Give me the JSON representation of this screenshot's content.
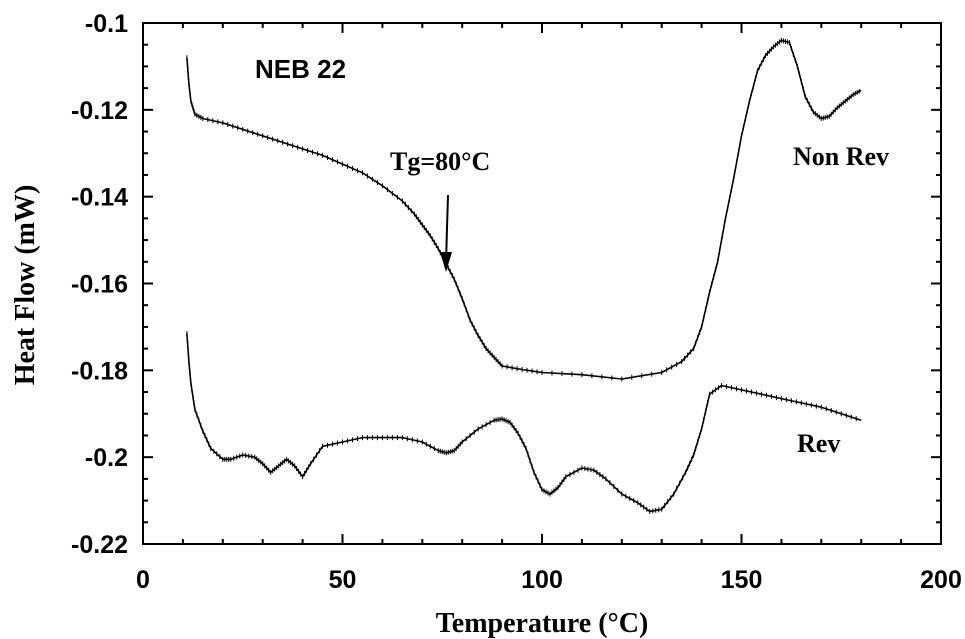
{
  "chart_data": {
    "type": "line",
    "title": "",
    "sample_label": "NEB 22",
    "xlabel": "Temperature (°C)",
    "ylabel": "Heat Flow (mW)",
    "xlim": [
      0,
      200
    ],
    "ylim": [
      -0.22,
      -0.1
    ],
    "grid": false,
    "x_ticks": [
      0,
      50,
      100,
      150,
      200
    ],
    "x_tick_labels": [
      "0",
      "50",
      "100",
      "150",
      "200"
    ],
    "y_ticks": [
      -0.1,
      -0.12,
      -0.14,
      -0.16,
      -0.18,
      -0.2,
      -0.22
    ],
    "y_tick_labels": [
      "-0.1",
      "-0.12",
      "-0.14",
      "-0.16",
      "-0.18",
      "-0.2",
      "-0.22"
    ],
    "annotations": [
      {
        "text": "Tg=80°C",
        "x": 78,
        "y": -0.163
      }
    ],
    "series": [
      {
        "name": "Non Rev",
        "x": [
          11,
          11.5,
          12,
          13,
          15,
          20,
          25,
          30,
          35,
          40,
          45,
          50,
          55,
          60,
          65,
          68,
          70,
          72,
          74,
          76,
          78,
          80,
          82,
          84,
          86,
          88,
          90,
          95,
          100,
          110,
          120,
          130,
          135,
          138,
          140,
          142,
          144,
          146,
          148,
          150,
          152,
          154,
          156,
          158,
          160,
          162,
          164,
          166,
          168,
          170,
          172,
          174,
          176,
          178,
          180
        ],
        "y": [
          -0.108,
          -0.114,
          -0.118,
          -0.121,
          -0.122,
          -0.123,
          -0.1245,
          -0.126,
          -0.1275,
          -0.129,
          -0.1305,
          -0.1325,
          -0.1345,
          -0.1375,
          -0.141,
          -0.144,
          -0.1465,
          -0.149,
          -0.152,
          -0.1555,
          -0.159,
          -0.1635,
          -0.1685,
          -0.172,
          -0.175,
          -0.177,
          -0.179,
          -0.1798,
          -0.1805,
          -0.181,
          -0.182,
          -0.1805,
          -0.178,
          -0.175,
          -0.17,
          -0.162,
          -0.155,
          -0.145,
          -0.136,
          -0.126,
          -0.118,
          -0.111,
          -0.1075,
          -0.1055,
          -0.104,
          -0.1045,
          -0.11,
          -0.117,
          -0.1205,
          -0.122,
          -0.1215,
          -0.1195,
          -0.118,
          -0.1165,
          -0.1155
        ]
      },
      {
        "name": "Rev",
        "x": [
          11,
          11.5,
          12,
          13,
          15,
          17,
          20,
          22,
          25,
          28,
          30,
          32,
          34,
          36,
          38,
          40,
          42,
          45,
          50,
          55,
          60,
          65,
          70,
          74,
          76,
          78,
          80,
          84,
          88,
          90,
          92,
          94,
          96,
          98,
          100,
          102,
          104,
          106,
          110,
          113,
          116,
          120,
          124,
          127,
          130,
          133,
          136,
          138,
          140,
          142,
          145,
          150,
          155,
          160,
          165,
          170,
          175,
          180
        ],
        "y": [
          -0.1715,
          -0.178,
          -0.183,
          -0.189,
          -0.194,
          -0.198,
          -0.2005,
          -0.2005,
          -0.1995,
          -0.2,
          -0.2015,
          -0.2035,
          -0.202,
          -0.2005,
          -0.202,
          -0.2045,
          -0.2015,
          -0.1975,
          -0.1965,
          -0.1955,
          -0.1955,
          -0.1955,
          -0.1965,
          -0.1985,
          -0.199,
          -0.1985,
          -0.1965,
          -0.1935,
          -0.1915,
          -0.1912,
          -0.192,
          -0.1945,
          -0.198,
          -0.2035,
          -0.2075,
          -0.2085,
          -0.207,
          -0.2045,
          -0.2025,
          -0.203,
          -0.205,
          -0.2085,
          -0.2105,
          -0.2125,
          -0.212,
          -0.2085,
          -0.2035,
          -0.1995,
          -0.1935,
          -0.1855,
          -0.1835,
          -0.1845,
          -0.1855,
          -0.1865,
          -0.1875,
          -0.1885,
          -0.19,
          -0.1915
        ]
      }
    ]
  }
}
